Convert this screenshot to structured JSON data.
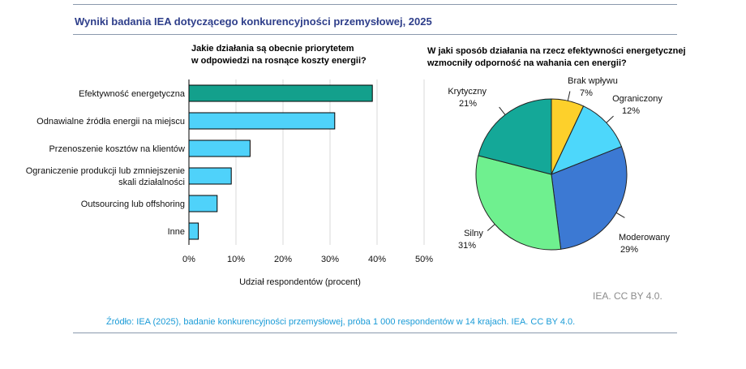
{
  "title": "Wyniki badania IEA dotyczącego konkurencyjności przemysłowej, 2025",
  "source": "Źródło: IEA (2025), badanie konkurencyjności przemysłowej, próba 1 000 respondentów w 14 krajach. IEA. CC BY 4.0.",
  "credit": "IEA. CC BY 4.0.",
  "colors": {
    "title": "#2e3e8a",
    "source": "#1a9bd7",
    "bar_highlight": "#13a08c",
    "bar_default": "#4fd2fa"
  },
  "chart_data": [
    {
      "type": "bar",
      "orientation": "horizontal",
      "title": "Jakie działania są obecnie priorytetem w odpowiedzi na rosnące koszty energii?",
      "title_lines": [
        "Jakie działania są obecnie priorytetem",
        "w odpowiedzi na rosnące koszty energii?"
      ],
      "categories": [
        "Efektywność energetyczna",
        "Odnawialne źródła energii na miejscu",
        "Przenoszenie kosztów na klientów",
        "Ograniczenie produkcji lub zmniejszenie skali działalności",
        "Outsourcing lub offshoring",
        "Inne"
      ],
      "category_lines": [
        [
          "Efektywność energetyczna"
        ],
        [
          "Odnawialne źródła energii na miejscu"
        ],
        [
          "Przenoszenie kosztów na klientów"
        ],
        [
          "Ograniczenie produkcji lub zmniejszenie",
          "skali działalności"
        ],
        [
          "Outsourcing lub offshoring"
        ],
        [
          "Inne"
        ]
      ],
      "values": [
        39,
        31,
        13,
        9,
        6,
        2
      ],
      "xlabel": "Udział respondentów (procent)",
      "xlim": [
        0,
        50
      ],
      "ticks": [
        0,
        10,
        20,
        30,
        40,
        50
      ],
      "tick_labels": [
        "0%",
        "10%",
        "20%",
        "30%",
        "40%",
        "50%"
      ],
      "grid": true
    },
    {
      "type": "pie",
      "title": "W jaki sposób działania na rzecz efektywności energetycznej wzmocniły odporność na wahania cen energii?",
      "title_lines": [
        "W jaki sposób działania na rzecz efektywności energetycznej",
        "wzmocniły odporność na wahania cen energii?"
      ],
      "slices": [
        {
          "label": "Brak wpływu",
          "value": 7,
          "value_label": "7%",
          "color": "#fdd02b"
        },
        {
          "label": "Ograniczony",
          "value": 12,
          "value_label": "12%",
          "color": "#4dd7fb"
        },
        {
          "label": "Moderowany",
          "value": 29,
          "value_label": "29%",
          "color": "#3c79d3"
        },
        {
          "label": "Silny",
          "value": 31,
          "value_label": "31%",
          "color": "#6ff08f"
        },
        {
          "label": "Krytyczny",
          "value": 21,
          "value_label": "21%",
          "color": "#14a898"
        }
      ]
    }
  ]
}
